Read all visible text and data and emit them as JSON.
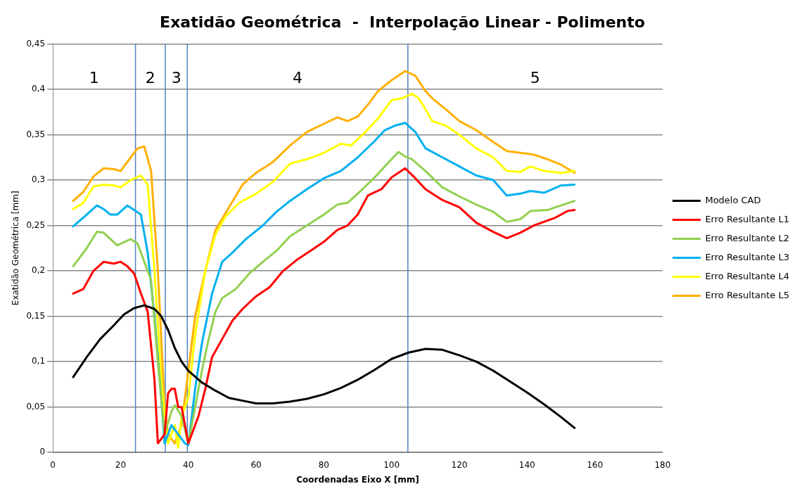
{
  "chart_data": {
    "type": "line",
    "title": "Exatidão Geométrica  -  Interpolação Linear - Polimento",
    "xlabel": "Coordenadas Eixo X [mm]",
    "ylabel": "Exatidão Geométrica [mm]",
    "xlim": [
      0,
      180
    ],
    "xticks": [
      0,
      20,
      40,
      60,
      80,
      100,
      120,
      140,
      160,
      180
    ],
    "ylim": [
      0,
      0.45
    ],
    "yticks": [
      {
        "value": 0,
        "label": "0"
      },
      {
        "value": 0.05,
        "label": "0,05"
      },
      {
        "value": 0.1,
        "label": "0,1"
      },
      {
        "value": 0.15,
        "label": "0,15"
      },
      {
        "value": 0.2,
        "label": "0,2"
      },
      {
        "value": 0.25,
        "label": "0,25"
      },
      {
        "value": 0.3,
        "label": "0,3"
      },
      {
        "value": 0.35,
        "label": "0,35"
      },
      {
        "value": 0.4,
        "label": "0,4"
      },
      {
        "value": 0.45,
        "label": "0,45"
      }
    ],
    "grid": "y",
    "legend": "right",
    "marker": "none",
    "line_style": "solid",
    "ref_lines": [
      {
        "axis": "x",
        "value": 24.4,
        "color": "#4f81bd"
      },
      {
        "axis": "x",
        "value": 33.2,
        "color": "#4f81bd"
      },
      {
        "axis": "x",
        "value": 39.7,
        "color": "#4f81bd"
      },
      {
        "axis": "x",
        "value": 104.8,
        "color": "#4f81bd"
      }
    ],
    "annotations": [
      "1",
      "2",
      "3",
      "4",
      "5"
    ],
    "series": [
      {
        "name": "Modelo CAD",
        "color": "#000000",
        "x": [
          6,
          10,
          14,
          18,
          21,
          24,
          27,
          30,
          32,
          34,
          36,
          38,
          40,
          44,
          48,
          52,
          56,
          60,
          65,
          70,
          75,
          80,
          85,
          90,
          95,
          100,
          105,
          110,
          115,
          120,
          125,
          130,
          135,
          140,
          145,
          150,
          154
        ],
        "values": [
          0.083,
          0.105,
          0.125,
          0.14,
          0.152,
          0.159,
          0.162,
          0.158,
          0.15,
          0.135,
          0.115,
          0.1,
          0.09,
          0.077,
          0.068,
          0.06,
          0.057,
          0.054,
          0.054,
          0.056,
          0.059,
          0.064,
          0.071,
          0.08,
          0.091,
          0.103,
          0.11,
          0.114,
          0.113,
          0.107,
          0.1,
          0.09,
          0.078,
          0.066,
          0.053,
          0.039,
          0.027
        ]
      },
      {
        "name": "Erro Resultante L1",
        "color": "#ff0000",
        "x": [
          6,
          9,
          12,
          15,
          18,
          20,
          22,
          24,
          26,
          28,
          30,
          31,
          33,
          34,
          35,
          36,
          37,
          38,
          39,
          40,
          41,
          43,
          45,
          47,
          50,
          53,
          56,
          60,
          64,
          68,
          72,
          76,
          80,
          84,
          87,
          90,
          93,
          97,
          100,
          104,
          107,
          110,
          115,
          120,
          125,
          130,
          134,
          138,
          142,
          148,
          152,
          154
        ],
        "values": [
          0.175,
          0.18,
          0.2,
          0.21,
          0.208,
          0.21,
          0.205,
          0.197,
          0.175,
          0.155,
          0.08,
          0.01,
          0.02,
          0.065,
          0.07,
          0.07,
          0.05,
          0.05,
          0.03,
          0.01,
          0.02,
          0.04,
          0.07,
          0.105,
          0.125,
          0.145,
          0.158,
          0.172,
          0.182,
          0.2,
          0.212,
          0.222,
          0.232,
          0.245,
          0.25,
          0.262,
          0.283,
          0.29,
          0.303,
          0.313,
          0.302,
          0.29,
          0.278,
          0.27,
          0.253,
          0.243,
          0.236,
          0.242,
          0.25,
          0.258,
          0.266,
          0.267
        ]
      },
      {
        "name": "Erro Resultante L2",
        "color": "#92d050",
        "x": [
          6,
          10,
          13,
          15,
          19,
          23,
          25,
          27,
          29,
          31,
          33,
          35,
          36,
          38,
          40,
          42,
          44,
          46,
          48,
          50,
          54,
          58,
          62,
          66,
          70,
          75,
          80,
          84,
          87,
          90,
          95,
          100,
          102,
          104,
          106,
          110,
          115,
          120,
          125,
          130,
          134,
          138,
          141,
          146,
          150,
          154
        ],
        "values": [
          0.205,
          0.225,
          0.243,
          0.242,
          0.228,
          0.235,
          0.23,
          0.21,
          0.19,
          0.1,
          0.02,
          0.045,
          0.052,
          0.04,
          0.01,
          0.05,
          0.09,
          0.125,
          0.155,
          0.17,
          0.18,
          0.197,
          0.21,
          0.222,
          0.238,
          0.25,
          0.262,
          0.273,
          0.275,
          0.285,
          0.303,
          0.323,
          0.331,
          0.326,
          0.323,
          0.31,
          0.292,
          0.282,
          0.273,
          0.265,
          0.254,
          0.257,
          0.266,
          0.267,
          0.272,
          0.277
        ]
      },
      {
        "name": "Erro Resultante L3",
        "color": "#00b0f0",
        "x": [
          6,
          10,
          13,
          15,
          17,
          19,
          22,
          24,
          26,
          28,
          30,
          32,
          33,
          35,
          37,
          39,
          40,
          42,
          44,
          47,
          50,
          53,
          57,
          62,
          66,
          70,
          75,
          80,
          85,
          90,
          95,
          98,
          101,
          104,
          107,
          110,
          115,
          120,
          125,
          130,
          134,
          138,
          141,
          145,
          150,
          154
        ],
        "values": [
          0.249,
          0.262,
          0.272,
          0.268,
          0.262,
          0.262,
          0.272,
          0.267,
          0.262,
          0.22,
          0.15,
          0.06,
          0.01,
          0.03,
          0.02,
          0.01,
          0.008,
          0.07,
          0.12,
          0.175,
          0.21,
          0.22,
          0.235,
          0.25,
          0.265,
          0.277,
          0.29,
          0.302,
          0.31,
          0.325,
          0.343,
          0.355,
          0.36,
          0.363,
          0.353,
          0.335,
          0.325,
          0.315,
          0.305,
          0.3,
          0.283,
          0.285,
          0.288,
          0.286,
          0.294,
          0.295
        ]
      },
      {
        "name": "Erro Resultante L4",
        "color": "#ffff00",
        "x": [
          6,
          9,
          12,
          15,
          18,
          20,
          23,
          26,
          28,
          30,
          32,
          34,
          36,
          37,
          38,
          40,
          42,
          45,
          48,
          51,
          55,
          60,
          65,
          70,
          75,
          80,
          85,
          88,
          92,
          96,
          100,
          103,
          106,
          108,
          110,
          112,
          116,
          120,
          125,
          130,
          134,
          138,
          141,
          145,
          150,
          154
        ],
        "values": [
          0.268,
          0.275,
          0.293,
          0.295,
          0.294,
          0.292,
          0.3,
          0.305,
          0.295,
          0.2,
          0.08,
          0.01,
          0.03,
          0.005,
          0.04,
          0.06,
          0.13,
          0.2,
          0.24,
          0.26,
          0.275,
          0.285,
          0.298,
          0.318,
          0.323,
          0.33,
          0.34,
          0.338,
          0.352,
          0.368,
          0.388,
          0.39,
          0.395,
          0.39,
          0.378,
          0.365,
          0.36,
          0.35,
          0.335,
          0.325,
          0.31,
          0.309,
          0.315,
          0.31,
          0.308,
          0.31
        ]
      },
      {
        "name": "Erro Resultante L5",
        "color": "#ffb000",
        "x": [
          6,
          9,
          12,
          15,
          18,
          20,
          23,
          25,
          27,
          29,
          31,
          33,
          34,
          36,
          38,
          40,
          42,
          45,
          48,
          52,
          56,
          60,
          65,
          70,
          75,
          80,
          84,
          87,
          90,
          93,
          96,
          100,
          104,
          107,
          110,
          112,
          116,
          120,
          125,
          130,
          134,
          138,
          142,
          146,
          150,
          154
        ],
        "values": [
          0.277,
          0.287,
          0.304,
          0.313,
          0.312,
          0.31,
          0.325,
          0.335,
          0.337,
          0.31,
          0.2,
          0.05,
          0.02,
          0.01,
          0.03,
          0.09,
          0.15,
          0.2,
          0.245,
          0.27,
          0.295,
          0.308,
          0.32,
          0.338,
          0.353,
          0.362,
          0.369,
          0.365,
          0.37,
          0.383,
          0.398,
          0.41,
          0.42,
          0.415,
          0.398,
          0.39,
          0.378,
          0.365,
          0.355,
          0.342,
          0.332,
          0.33,
          0.328,
          0.323,
          0.317,
          0.308
        ]
      }
    ]
  }
}
